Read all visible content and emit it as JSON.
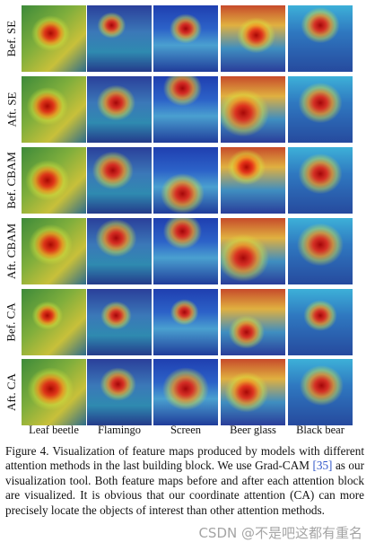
{
  "figure": {
    "rows": [
      "Bef. SE",
      "Aft. SE",
      "Bef. CBAM",
      "Aft. CBAM",
      "Bef. CA",
      "Aft. CA"
    ],
    "columns": [
      "Leaf beetle",
      "Flamingo",
      "Screen",
      "Beer glass",
      "Black bear"
    ]
  },
  "caption": {
    "label": "Figure 4.",
    "text_before_cite": "Visualization of feature maps produced by models with different attention methods in the last building block. We use Grad-CAM",
    "cite": "[35]",
    "text_after_cite": "as our visualization tool. Both feature maps before and after each attention block are visualized. It is obvious that our coordinate attention (CA) can more precisely locate the objects of interest than other attention methods."
  },
  "watermark": "CSDN @不是吧这都有重名"
}
